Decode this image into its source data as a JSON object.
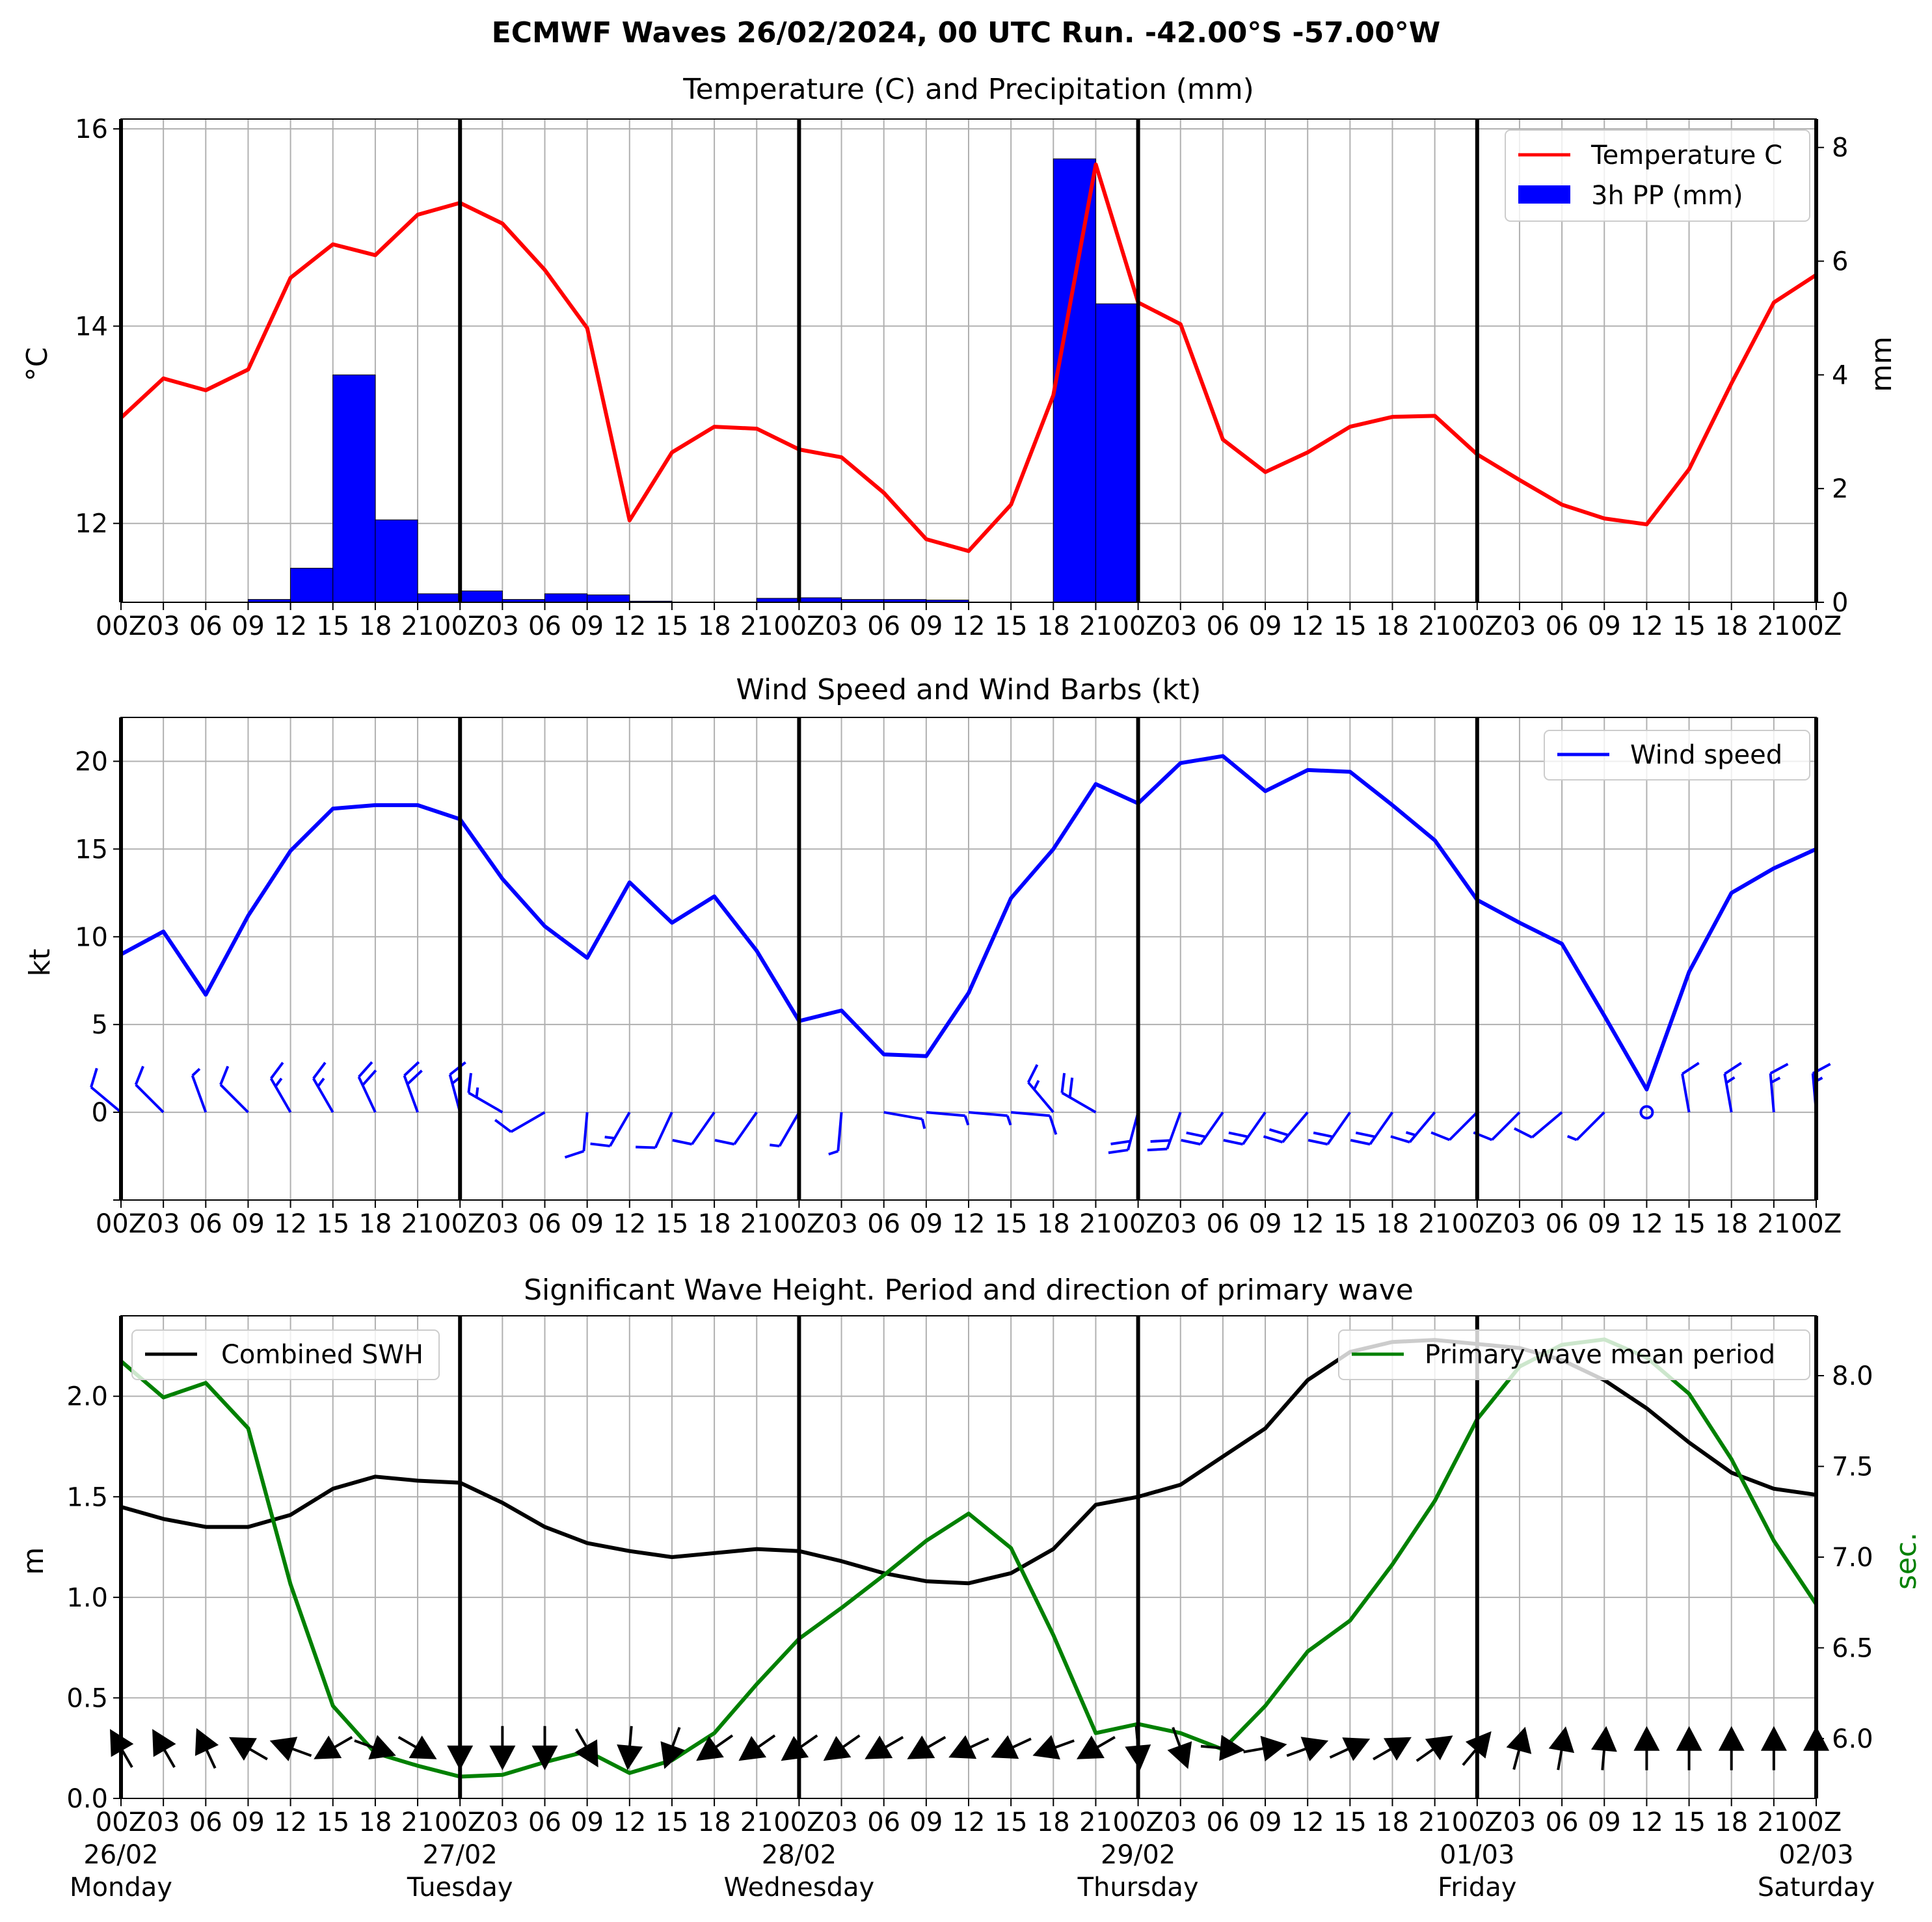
{
  "title": "ECMWF Waves 26/02/2024, 00 UTC Run. -42.00°S -57.00°W",
  "x_tick_labels": [
    "00Z",
    "03",
    "06",
    "09",
    "12",
    "15",
    "18",
    "21",
    "00Z",
    "03",
    "06",
    "09",
    "12",
    "15",
    "18",
    "21",
    "00Z",
    "03",
    "06",
    "09",
    "12",
    "15",
    "18",
    "21",
    "00Z",
    "03",
    "06",
    "09",
    "12",
    "15",
    "18",
    "21",
    "00Z",
    "03",
    "06",
    "09",
    "12",
    "15",
    "18",
    "21",
    "00Z"
  ],
  "day_labels": [
    {
      "date": "26/02",
      "day": "Monday"
    },
    {
      "date": "27/02",
      "day": "Tuesday"
    },
    {
      "date": "28/02",
      "day": "Wednesday"
    },
    {
      "date": "29/02",
      "day": "Thursday"
    },
    {
      "date": "01/03",
      "day": "Friday"
    },
    {
      "date": "02/03",
      "day": "Saturday"
    }
  ],
  "colors": {
    "temperature": "#ff0000",
    "precip": "#0000ff",
    "wind": "#0000ff",
    "swh": "#000000",
    "period": "#008000",
    "grid": "#b0b0b0"
  },
  "chart_data": [
    {
      "type": "line",
      "title": "Temperature (C) and Precipitation (mm)",
      "ylabel": "$^\\circ$C",
      "ylabel_right": "mm",
      "ylim": [
        11.2,
        16.1
      ],
      "ylim_right": [
        0,
        8.5
      ],
      "yticks": [
        12,
        14,
        16
      ],
      "yticks_right": [
        0,
        2,
        4,
        6,
        8
      ],
      "legend": "top-right",
      "series": [
        {
          "name": "Temperature C",
          "axis": "left",
          "values": [
            13.07,
            13.47,
            13.35,
            13.56,
            14.49,
            14.83,
            14.72,
            15.13,
            15.25,
            15.04,
            14.57,
            13.98,
            12.03,
            12.72,
            12.98,
            12.96,
            12.75,
            12.67,
            12.31,
            11.84,
            11.72,
            12.19,
            13.3,
            15.64,
            14.24,
            14.02,
            12.85,
            12.52,
            12.72,
            12.98,
            13.08,
            13.09,
            12.7,
            12.44,
            12.19,
            12.05,
            11.99,
            12.55,
            13.42,
            14.24,
            14.52
          ]
        },
        {
          "name": "3h PP (mm)",
          "axis": "right",
          "type": "bar",
          "values": [
            0,
            0,
            0,
            0.05,
            0.6,
            4.0,
            1.45,
            0.15,
            0.2,
            0.05,
            0.15,
            0.13,
            0.02,
            0,
            0,
            0.07,
            0.08,
            0.05,
            0.05,
            0.04,
            0,
            0,
            7.8,
            5.25,
            0,
            0,
            0,
            0,
            0,
            0,
            0,
            0,
            0,
            0,
            0,
            0,
            0,
            0,
            0,
            0
          ]
        }
      ]
    },
    {
      "type": "line",
      "title": "Wind Speed and Wind Barbs (kt)",
      "ylabel": "kt",
      "ylim": [
        -5,
        22.5
      ],
      "yticks": [
        0,
        5,
        10,
        15,
        20
      ],
      "legend": "top-right",
      "series": [
        {
          "name": "Wind speed",
          "values": [
            9.0,
            10.3,
            6.7,
            11.2,
            14.9,
            17.3,
            17.5,
            17.5,
            16.7,
            13.3,
            10.6,
            8.8,
            13.1,
            10.8,
            12.3,
            9.2,
            5.2,
            5.8,
            3.3,
            3.2,
            6.8,
            12.2,
            15.0,
            18.7,
            17.6,
            19.9,
            20.3,
            18.3,
            19.5,
            19.4,
            17.5,
            15.5,
            12.1,
            10.8,
            9.6,
            5.5,
            1.3,
            8.0,
            12.5,
            13.9,
            15.0
          ]
        }
      ],
      "barbs_from_deg": [
        310,
        315,
        340,
        315,
        330,
        330,
        335,
        340,
        345,
        300,
        240,
        185,
        210,
        205,
        215,
        215,
        210,
        185,
        100,
        95,
        95,
        95,
        320,
        300,
        195,
        200,
        215,
        215,
        220,
        215,
        215,
        220,
        225,
        225,
        230,
        225,
        0,
        350,
        350,
        355,
        355
      ]
    },
    {
      "type": "line",
      "title": "Significant Wave Height. Period and direction of primary wave",
      "ylabel": "m",
      "ylabel_right": "sec.",
      "ylim": [
        0,
        2.4
      ],
      "ylim_right": [
        5.67,
        8.33
      ],
      "yticks": [
        0.0,
        0.5,
        1.0,
        1.5,
        2.0
      ],
      "yticks_right": [
        6.0,
        6.5,
        7.0,
        7.5,
        8.0
      ],
      "series": [
        {
          "name": "Combined SWH",
          "axis": "left",
          "legend": "top-left",
          "values": [
            1.45,
            1.39,
            1.35,
            1.35,
            1.41,
            1.54,
            1.6,
            1.58,
            1.57,
            1.47,
            1.35,
            1.27,
            1.23,
            1.2,
            1.22,
            1.24,
            1.23,
            1.18,
            1.12,
            1.08,
            1.07,
            1.12,
            1.24,
            1.46,
            1.5,
            1.56,
            1.7,
            1.84,
            2.08,
            2.22,
            2.27,
            2.28,
            2.26,
            2.24,
            2.18,
            2.08,
            1.94,
            1.77,
            1.62,
            1.54,
            1.51
          ]
        },
        {
          "name": "Primary wave mean period",
          "axis": "right",
          "legend": "top-right",
          "values": [
            8.08,
            7.88,
            7.96,
            7.71,
            6.85,
            6.18,
            5.92,
            5.85,
            5.79,
            5.8,
            5.87,
            5.93,
            5.81,
            5.88,
            6.03,
            6.3,
            6.55,
            6.72,
            6.9,
            7.09,
            7.24,
            7.05,
            6.57,
            6.03,
            6.08,
            6.03,
            5.94,
            6.18,
            6.48,
            6.65,
            6.96,
            7.31,
            7.76,
            8.05,
            8.17,
            8.2,
            8.1,
            7.9,
            7.54,
            7.09,
            6.74
          ]
        }
      ],
      "wave_dir_to_deg": [
        330,
        330,
        335,
        300,
        290,
        240,
        110,
        120,
        180,
        180,
        180,
        150,
        185,
        200,
        235,
        235,
        235,
        235,
        240,
        240,
        245,
        245,
        250,
        240,
        175,
        160,
        95,
        80,
        70,
        65,
        60,
        55,
        40,
        15,
        10,
        5,
        0,
        0,
        0,
        0,
        0
      ]
    }
  ]
}
